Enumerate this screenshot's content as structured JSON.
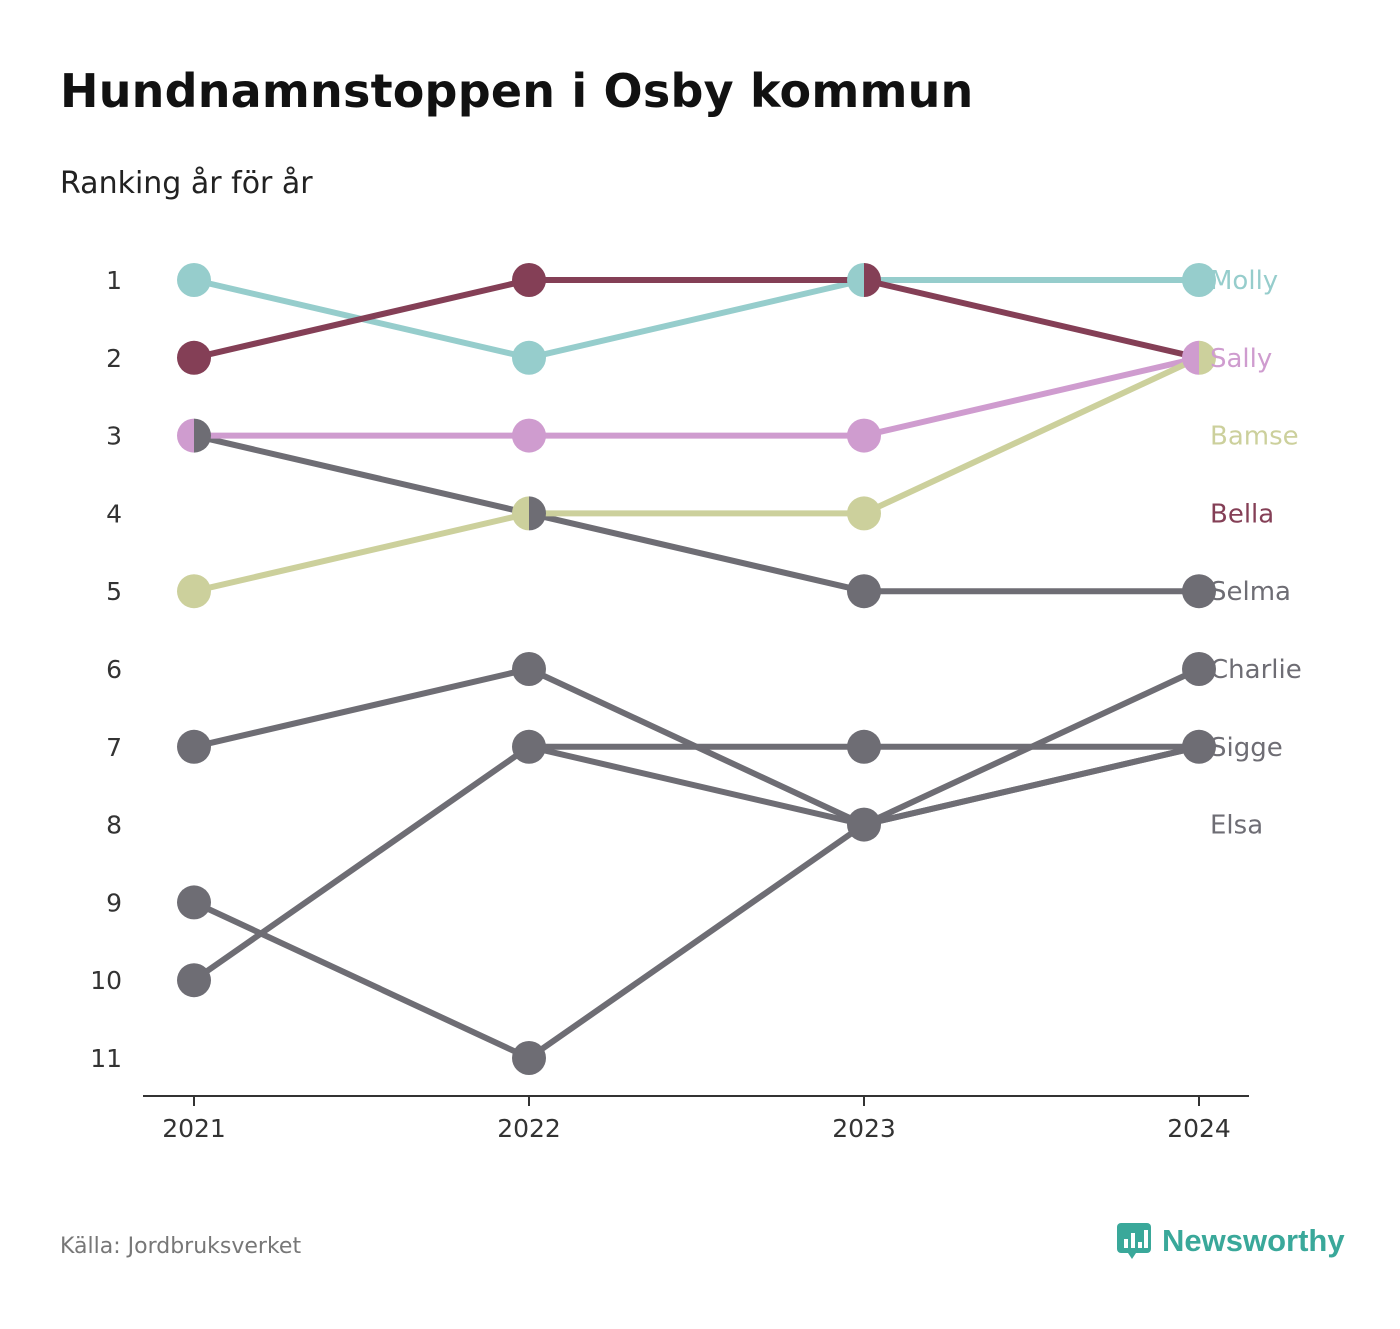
{
  "title": "Hundnamnstoppen i Osby kommun",
  "subtitle": "Ranking år för år",
  "source": "Källa: Jordbruksverket",
  "brand": {
    "name": "Newsworthy",
    "icon": "newsworthy-logo-icon",
    "color": "#3aa89a"
  },
  "chart_data": {
    "type": "line",
    "title": "Hundnamnstoppen i Osby kommun",
    "subtitle": "Ranking år för år",
    "xlabel": "",
    "ylabel": "",
    "categories": [
      "2021",
      "2022",
      "2023",
      "2024"
    ],
    "yticks": [
      "1",
      "2",
      "3",
      "4",
      "5",
      "6",
      "7",
      "8",
      "9",
      "10",
      "11"
    ],
    "ylim": [
      1,
      11
    ],
    "y_reversed": true,
    "grid": false,
    "legend": "right-end labels",
    "series": [
      {
        "name": "Molly",
        "values": [
          1,
          2,
          1,
          1
        ],
        "color": "#96cdcc",
        "label_rank": 1
      },
      {
        "name": "Sally",
        "values": [
          3,
          3,
          3,
          2
        ],
        "color": "#cf9ccf",
        "label_rank": 2
      },
      {
        "name": "Bamse",
        "values": [
          5,
          4,
          4,
          2
        ],
        "color": "#ccd09c",
        "label_rank": 3
      },
      {
        "name": "Bella",
        "values": [
          2,
          1,
          1,
          2
        ],
        "color": "#843f56",
        "label_rank": 4
      },
      {
        "name": "Selma",
        "values": [
          3,
          4,
          5,
          5
        ],
        "color": "#6e6d74",
        "label_rank": 5
      },
      {
        "name": "Charlie",
        "values": [
          10,
          7,
          8,
          6
        ],
        "color": "#6e6d74",
        "label_rank": 6
      },
      {
        "name": "Sigge",
        "values": [
          7,
          6,
          8,
          7
        ],
        "color": "#6e6d74",
        "label_rank": 7
      },
      {
        "name": "Elsa",
        "values": [
          9,
          11,
          8,
          7
        ],
        "color": "#6e6d74",
        "label_rank": 8
      },
      {
        "name": "",
        "values": [
          null,
          7,
          7,
          7
        ],
        "color": "#6e6d74",
        "label_rank": null
      }
    ]
  }
}
